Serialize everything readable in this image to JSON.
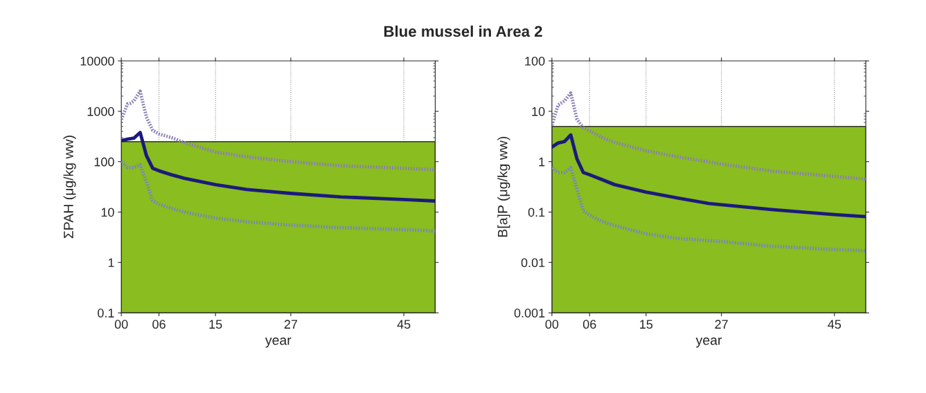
{
  "chart_data": [
    {
      "type": "line",
      "title": "Blue mussel in Area 2",
      "xlabel": "year",
      "ylabel": "ΣPAH (μg/kg ww)",
      "log": "y",
      "grid": "x",
      "xlim": [
        0,
        50
      ],
      "xticks": [
        {
          "value": 0,
          "label": "00"
        },
        {
          "value": 6,
          "label": "06"
        },
        {
          "value": 15,
          "label": "15"
        },
        {
          "value": 27,
          "label": "27"
        },
        {
          "value": 45,
          "label": "45"
        }
      ],
      "ylim": [
        0.1,
        10000
      ],
      "yticks": [
        0.1,
        1,
        10,
        100,
        1000,
        10000
      ],
      "bands": [
        {
          "axis": "y",
          "from": 0.1,
          "to": 250,
          "color": "#89bd20"
        }
      ],
      "series": [
        {
          "color": "#8c80b4",
          "line_style": "dotted",
          "x": [
            0,
            1,
            1.5,
            2,
            3,
            4,
            5,
            6,
            8,
            10,
            15,
            20,
            27,
            35,
            45,
            50
          ],
          "values": [
            690,
            1400,
            1450,
            1600,
            2500,
            770,
            420,
            355,
            300,
            240,
            155,
            125,
            100,
            83,
            74,
            69
          ]
        },
        {
          "color": "#1c1a7c",
          "line_style": "solid",
          "x": [
            0,
            1,
            2,
            3,
            4,
            5,
            6,
            8,
            10,
            15,
            20,
            27,
            35,
            45,
            50
          ],
          "values": [
            263,
            280,
            293,
            380,
            132,
            74,
            66,
            55,
            47,
            35,
            28,
            23.5,
            20,
            17.7,
            16.6
          ]
        },
        {
          "color": "#7a88b4",
          "line_style": "dotted",
          "x": [
            0,
            1,
            2,
            3,
            4,
            5,
            6,
            8,
            10,
            15,
            20,
            27,
            35,
            45,
            50
          ],
          "values": [
            102,
            76,
            76,
            87,
            40,
            16.7,
            14.4,
            11.8,
            10,
            7.6,
            6.4,
            5.5,
            4.9,
            4.5,
            4.2
          ]
        }
      ]
    },
    {
      "type": "line",
      "xlabel": "year",
      "ylabel": "B[a]P (μg/kg ww)",
      "log": "y",
      "grid": "x",
      "xlim": [
        0,
        50
      ],
      "xticks": [
        {
          "value": 0,
          "label": "00"
        },
        {
          "value": 6,
          "label": "06"
        },
        {
          "value": 15,
          "label": "15"
        },
        {
          "value": 27,
          "label": "27"
        },
        {
          "value": 45,
          "label": "45"
        }
      ],
      "ylim": [
        0.001,
        100
      ],
      "yticks": [
        0.001,
        0.01,
        0.1,
        1,
        10,
        100
      ],
      "bands": [
        {
          "axis": "y",
          "from": 0.001,
          "to": 5,
          "color": "#89bd20"
        }
      ],
      "series": [
        {
          "color": "#8c80b4",
          "line_style": "dotted",
          "x": [
            0,
            1,
            2,
            3,
            4,
            5,
            6,
            8,
            10,
            15,
            20,
            27,
            35,
            45,
            50
          ],
          "values": [
            5.3,
            13.4,
            16,
            23,
            6.9,
            4.7,
            4.1,
            3.0,
            2.4,
            1.65,
            1.25,
            0.9,
            0.65,
            0.51,
            0.45
          ]
        },
        {
          "color": "#1c1a7c",
          "line_style": "solid",
          "x": [
            0,
            1,
            2,
            3,
            4,
            5,
            6,
            8,
            10,
            15,
            20,
            25,
            27,
            35,
            45,
            50
          ],
          "values": [
            1.95,
            2.35,
            2.5,
            3.4,
            1.13,
            0.61,
            0.55,
            0.44,
            0.35,
            0.25,
            0.19,
            0.148,
            0.14,
            0.112,
            0.089,
            0.081
          ]
        },
        {
          "color": "#7a88b4",
          "line_style": "dotted",
          "x": [
            0,
            1,
            2,
            3,
            4,
            5,
            6,
            8,
            10,
            15,
            20,
            27,
            35,
            45,
            50
          ],
          "values": [
            0.76,
            0.61,
            0.61,
            0.76,
            0.28,
            0.105,
            0.087,
            0.065,
            0.054,
            0.037,
            0.03,
            0.026,
            0.021,
            0.018,
            0.017
          ]
        }
      ]
    }
  ]
}
